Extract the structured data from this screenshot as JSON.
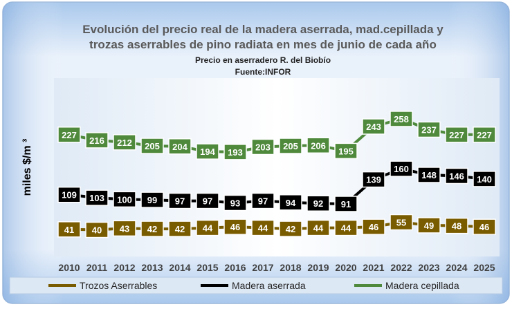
{
  "chart_data": {
    "type": "line",
    "title_line1": "Evolución del precio real de la madera aserrada, mad.cepillada y",
    "title_line2": "trozas aserrables de pino radiata en mes de  junio de cada año",
    "subtitle": "Precio en aserradero R. del Biobío",
    "source": "Fuente:INFOR",
    "ylabel": "miles $/m ³",
    "xlabel": "",
    "categories": [
      "2010",
      "2011",
      "2012",
      "2013",
      "2014",
      "2015",
      "2016",
      "2017",
      "2018",
      "2019",
      "2020",
      "2021",
      "2022",
      "2023",
      "2024",
      "2025"
    ],
    "ylim": [
      0,
      280
    ],
    "grid": false,
    "legend_position": "bottom",
    "series": [
      {
        "name": "Trozos Aserrables",
        "color": "#7a5c00",
        "label_fill": "#7a5c00",
        "values": [
          41,
          40,
          43,
          42,
          42,
          44,
          46,
          44,
          42,
          44,
          44,
          46,
          55,
          49,
          48,
          46
        ]
      },
      {
        "name": "Madera aserrada",
        "color": "#000000",
        "label_fill": "#000000",
        "values": [
          109,
          103,
          100,
          99,
          97,
          97,
          93,
          97,
          94,
          92,
          91,
          139,
          160,
          148,
          146,
          140
        ]
      },
      {
        "name": "Madera cepillada",
        "color": "#4f8a3c",
        "label_fill": "#4f8a3c",
        "values": [
          227,
          216,
          212,
          205,
          204,
          194,
          193,
          203,
          205,
          206,
          195,
          243,
          258,
          237,
          227,
          227
        ]
      }
    ]
  }
}
